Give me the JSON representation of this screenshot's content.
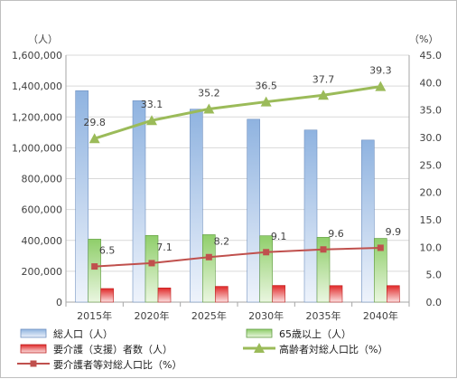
{
  "chart_data": {
    "type": "bar",
    "categories": [
      "2015年",
      "2020年",
      "2025年",
      "2030年",
      "2035年",
      "2040年"
    ],
    "left_unit": "（人）",
    "right_unit": "（%）",
    "left_ylim": [
      0,
      1600000
    ],
    "left_ticks": [
      "0",
      "200,000",
      "400,000",
      "600,000",
      "800,000",
      "1,000,000",
      "1,200,000",
      "1,400,000",
      "1,600,000"
    ],
    "right_ylim": [
      0,
      45
    ],
    "right_ticks": [
      "0.0",
      "5.0",
      "10.0",
      "15.0",
      "20.0",
      "25.0",
      "30.0",
      "35.0",
      "40.0",
      "45.0"
    ],
    "gridlines": true,
    "legend_position": "bottom",
    "series": [
      {
        "name": "総人口（人）",
        "kind": "bar",
        "axis": "left",
        "color": "#8fb3e0",
        "values": [
          1370000,
          1305000,
          1250000,
          1185000,
          1115000,
          1050000
        ]
      },
      {
        "name": "65歳以上（人）",
        "kind": "bar",
        "axis": "left",
        "color": "#8fce6a",
        "values": [
          408000,
          432000,
          437000,
          430000,
          420000,
          413000
        ]
      },
      {
        "name": "要介護（支援）者数（人）",
        "kind": "bar",
        "axis": "left",
        "color": "#e03030",
        "values": [
          88000,
          92000,
          102000,
          108000,
          107000,
          107000
        ]
      },
      {
        "name": "高齢者対総人口比（%）",
        "kind": "line",
        "axis": "right",
        "color": "#9bbb59",
        "marker": "triangle",
        "values": [
          29.8,
          33.1,
          35.2,
          36.5,
          37.7,
          39.3
        ],
        "labels": [
          "29.8",
          "33.1",
          "35.2",
          "36.5",
          "37.7",
          "39.3"
        ]
      },
      {
        "name": "要介護者等対総人口比（%）",
        "kind": "line",
        "axis": "right",
        "color": "#c0504d",
        "marker": "square",
        "values": [
          6.5,
          7.1,
          8.2,
          9.1,
          9.6,
          9.9
        ],
        "labels": [
          "6.5",
          "7.1",
          "8.2",
          "9.1",
          "9.6",
          "9.9"
        ]
      }
    ]
  }
}
